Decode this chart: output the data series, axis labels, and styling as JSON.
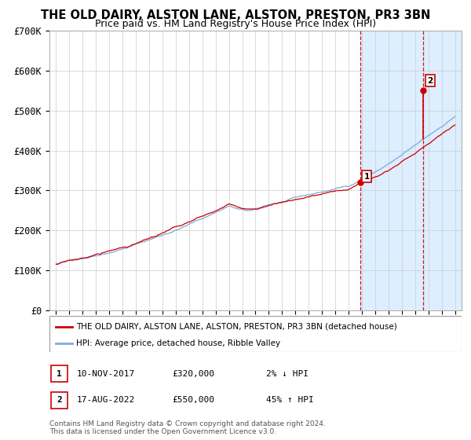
{
  "title": "THE OLD DAIRY, ALSTON LANE, ALSTON, PRESTON, PR3 3BN",
  "subtitle": "Price paid vs. HM Land Registry's House Price Index (HPI)",
  "ylim": [
    0,
    700000
  ],
  "yticks": [
    0,
    100000,
    200000,
    300000,
    400000,
    500000,
    600000,
    700000
  ],
  "ytick_labels": [
    "£0",
    "£100K",
    "£200K",
    "£300K",
    "£400K",
    "£500K",
    "£600K",
    "£700K"
  ],
  "sale1_date_label": "10-NOV-2017",
  "sale1_price": 320000,
  "sale1_pct": "2%",
  "sale1_direction": "↓",
  "sale2_date_label": "17-AUG-2022",
  "sale2_price": 550000,
  "sale2_pct": "45%",
  "sale2_direction": "↑",
  "sale1_x": 2017.86,
  "sale2_x": 2022.63,
  "red_line_color": "#cc0000",
  "blue_line_color": "#7aaadd",
  "highlight_bg": "#ddeeff",
  "dashed_line_color": "#cc0000",
  "grid_color": "#cccccc",
  "bg_color": "#ffffff",
  "title_fontsize": 10.5,
  "subtitle_fontsize": 9,
  "legend_label1": "THE OLD DAIRY, ALSTON LANE, ALSTON, PRESTON, PR3 3BN (detached house)",
  "legend_label2": "HPI: Average price, detached house, Ribble Valley",
  "footnote": "Contains HM Land Registry data © Crown copyright and database right 2024.\nThis data is licensed under the Open Government Licence v3.0."
}
